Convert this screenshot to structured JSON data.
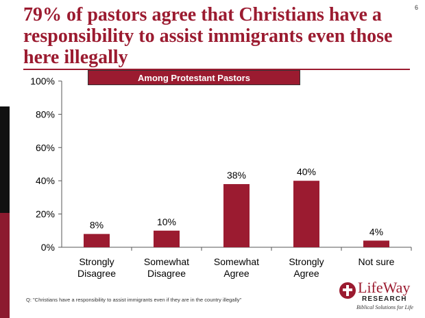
{
  "page_number": "6",
  "title": "79% of pastors agree that Christians have a responsibility to assist immigrants even those here illegally",
  "banner": "Among Protestant Pastors",
  "footnote": "Q: \"Christians have a responsibility to assist immigrants even if they are in the country illegally\"",
  "logo": {
    "word": "LifeWay",
    "research": "RESEARCH",
    "tagline": "Biblical Solutions for Life"
  },
  "colors": {
    "accent": "#9b1b30",
    "bar": "#9b1b30"
  },
  "chart_data": {
    "type": "bar",
    "title": "",
    "xlabel": "",
    "ylabel": "",
    "ylim": [
      0,
      100
    ],
    "yticks": [
      "0%",
      "20%",
      "40%",
      "60%",
      "80%",
      "100%"
    ],
    "grid": false,
    "categories": [
      [
        "Strongly",
        "Disagree"
      ],
      [
        "Somewhat",
        "Disagree"
      ],
      [
        "Somewhat",
        "Agree"
      ],
      [
        "Strongly",
        "Agree"
      ],
      [
        "Not sure"
      ]
    ],
    "values": [
      8,
      10,
      38,
      40,
      4
    ],
    "data_labels": [
      "8%",
      "10%",
      "38%",
      "40%",
      "4%"
    ]
  }
}
